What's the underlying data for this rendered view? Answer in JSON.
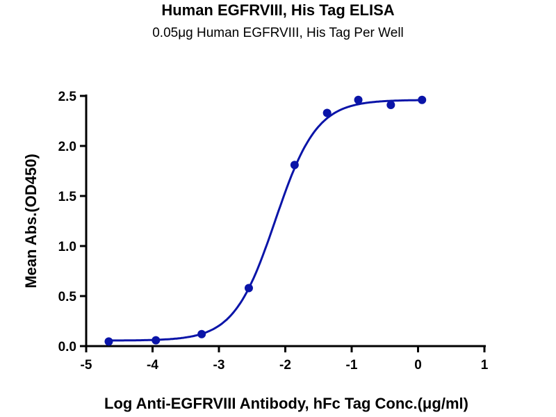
{
  "chart_data": {
    "type": "scatter",
    "title": "Human EGFRVIII, His Tag ELISA",
    "subtitle": "0.05μg Human EGFRVIII, His Tag Per Well",
    "xlabel": "Log Anti-EGFRVIII Antibody, hFc Tag Conc.(μg/ml)",
    "ylabel": "Mean Abs.(OD450)",
    "xlim": [
      -5,
      1
    ],
    "ylim": [
      0,
      2.5
    ],
    "xticks": [
      -5,
      -4,
      -3,
      -2,
      -1,
      0,
      1
    ],
    "yticks": [
      0.0,
      0.5,
      1.0,
      1.5,
      2.0,
      2.5
    ],
    "xtick_labels": [
      "-5",
      "-4",
      "-3",
      "-2",
      "-1",
      "0",
      "1"
    ],
    "ytick_labels": [
      "0.0",
      "0.5",
      "1.0",
      "1.5",
      "2.0",
      "2.5"
    ],
    "grid": false,
    "fit_curve": "sigmoidal (4PL)",
    "color": "#0a14a8",
    "x": [
      -4.66,
      -3.95,
      -3.26,
      -2.55,
      -1.86,
      -1.37,
      -0.9,
      -0.41,
      0.06
    ],
    "y": [
      0.046,
      0.058,
      0.12,
      0.58,
      1.81,
      2.33,
      2.46,
      2.41,
      2.46
    ]
  }
}
